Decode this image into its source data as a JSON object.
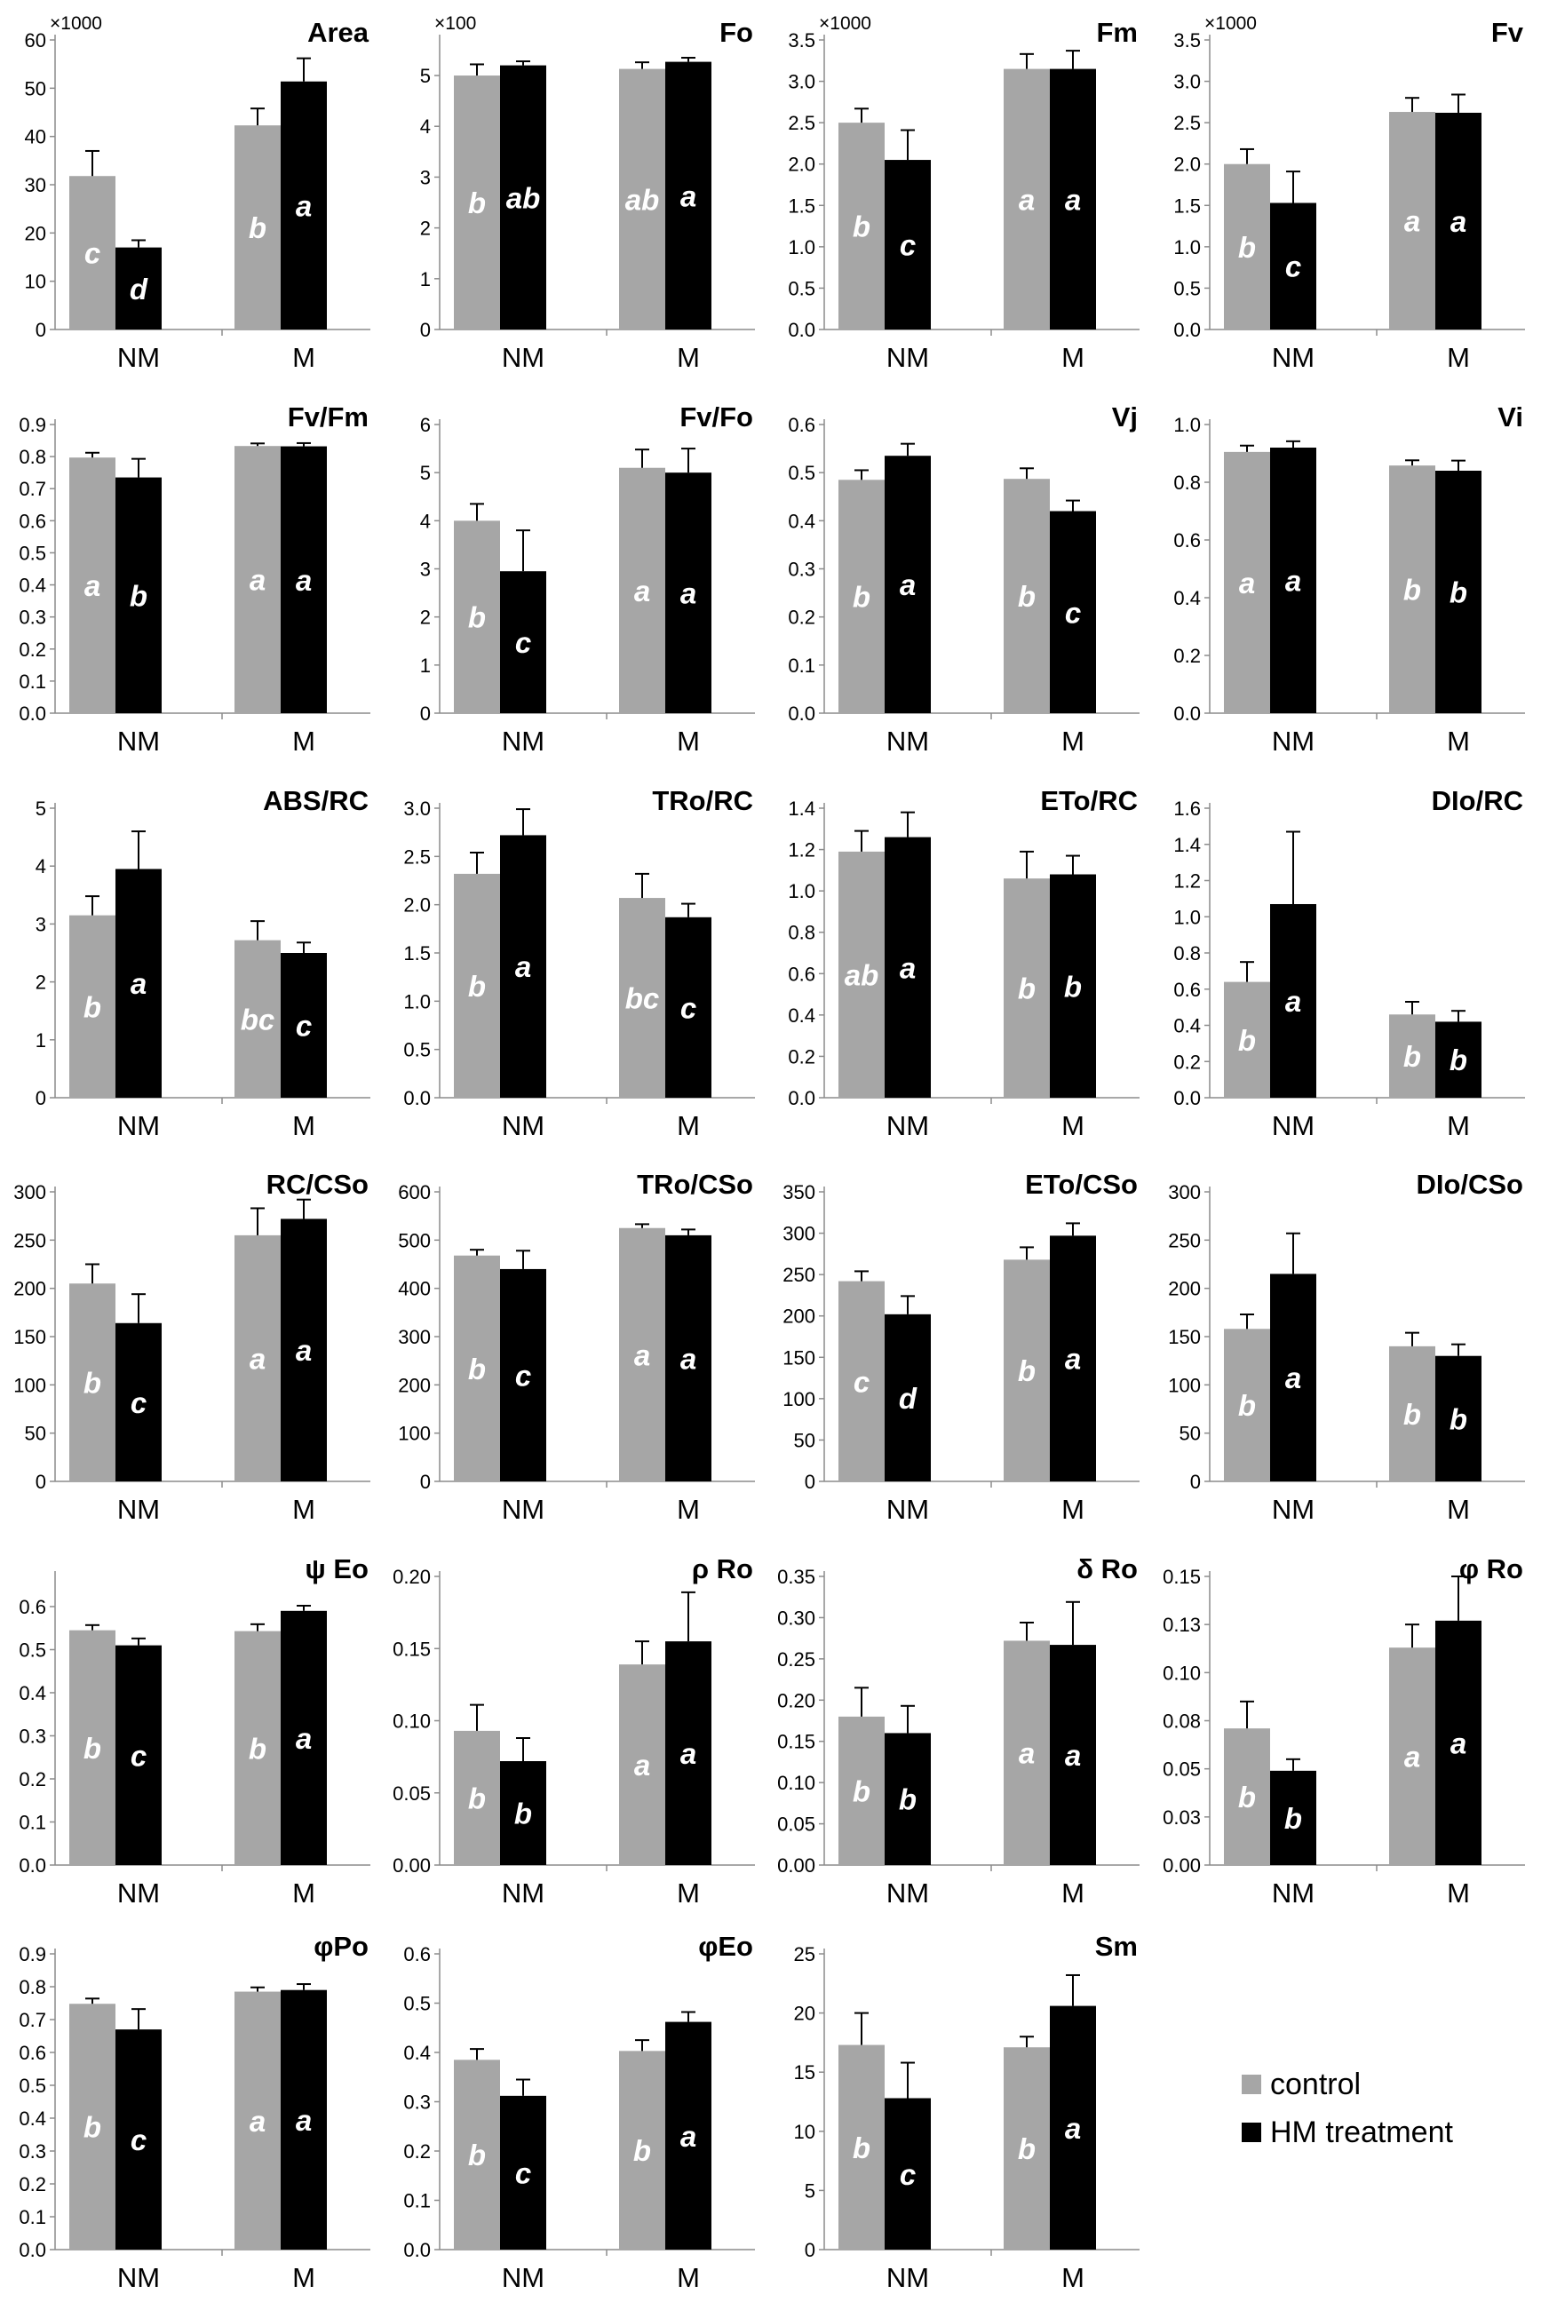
{
  "categories": [
    "NM",
    "M"
  ],
  "colors": {
    "control": "#a6a6a6",
    "treatment": "#000000"
  },
  "legend": {
    "control": "control",
    "treatment": "HM treatment"
  },
  "chart_data": [
    {
      "type": "bar",
      "title": "Area",
      "multiplier": "×1000",
      "ticks": [
        "0",
        "10",
        "20",
        "30",
        "40",
        "50",
        "60"
      ],
      "ylim": [
        0,
        60
      ],
      "series": [
        {
          "name": "control",
          "values": [
            31.8,
            42.3
          ],
          "errors": [
            5.2,
            3.5
          ],
          "letters": [
            "c",
            "b"
          ]
        },
        {
          "name": "HM treatment",
          "values": [
            17.0,
            51.4
          ],
          "errors": [
            1.5,
            4.8
          ],
          "letters": [
            "d",
            "a"
          ]
        }
      ]
    },
    {
      "type": "bar",
      "title": "Fo",
      "multiplier": "×100",
      "ticks": [
        "0",
        "1",
        "2",
        "3",
        "4",
        "5"
      ],
      "ylim": [
        0,
        5.7
      ],
      "series": [
        {
          "name": "control",
          "values": [
            5.0,
            5.13
          ],
          "errors": [
            0.22,
            0.13
          ],
          "letters": [
            "b",
            "ab"
          ]
        },
        {
          "name": "HM treatment",
          "values": [
            5.2,
            5.27
          ],
          "errors": [
            0.08,
            0.08
          ],
          "letters": [
            "ab",
            "a"
          ]
        }
      ]
    },
    {
      "type": "bar",
      "title": "Fm",
      "multiplier": "×1000",
      "ticks": [
        "0.0",
        "0.5",
        "1.0",
        "1.5",
        "2.0",
        "2.5",
        "3.0",
        "3.5"
      ],
      "ylim": [
        0,
        3.5
      ],
      "series": [
        {
          "name": "control",
          "values": [
            2.5,
            3.15
          ],
          "errors": [
            0.17,
            0.18
          ],
          "letters": [
            "b",
            "a"
          ]
        },
        {
          "name": "HM treatment",
          "values": [
            2.05,
            3.15
          ],
          "errors": [
            0.36,
            0.22
          ],
          "letters": [
            "c",
            "a"
          ]
        }
      ]
    },
    {
      "type": "bar",
      "title": "Fv",
      "multiplier": "×1000",
      "ticks": [
        "0.0",
        "0.5",
        "1.0",
        "1.5",
        "2.0",
        "2.5",
        "3.0",
        "3.5"
      ],
      "ylim": [
        0,
        3.5
      ],
      "series": [
        {
          "name": "control",
          "values": [
            2.0,
            2.63
          ],
          "errors": [
            0.18,
            0.17
          ],
          "letters": [
            "b",
            "a"
          ]
        },
        {
          "name": "HM treatment",
          "values": [
            1.53,
            2.62
          ],
          "errors": [
            0.38,
            0.22
          ],
          "letters": [
            "c",
            "a"
          ]
        }
      ]
    },
    {
      "type": "bar",
      "title": "Fv/Fm",
      "multiplier": "",
      "ticks": [
        "0.0",
        "0.1",
        "0.2",
        "0.3",
        "0.4",
        "0.5",
        "0.6",
        "0.7",
        "0.8",
        "0.9"
      ],
      "ylim": [
        0,
        0.9
      ],
      "series": [
        {
          "name": "control",
          "values": [
            0.797,
            0.833
          ],
          "errors": [
            0.015,
            0.008
          ],
          "letters": [
            "a",
            "a"
          ]
        },
        {
          "name": "HM treatment",
          "values": [
            0.735,
            0.832
          ],
          "errors": [
            0.058,
            0.01
          ],
          "letters": [
            "b",
            "a"
          ]
        }
      ]
    },
    {
      "type": "bar",
      "title": "Fv/Fo",
      "multiplier": "",
      "ticks": [
        "0",
        "1",
        "2",
        "3",
        "4",
        "5",
        "6"
      ],
      "ylim": [
        0,
        6
      ],
      "series": [
        {
          "name": "control",
          "values": [
            4.0,
            5.1
          ],
          "errors": [
            0.35,
            0.38
          ],
          "letters": [
            "b",
            "a"
          ]
        },
        {
          "name": "HM treatment",
          "values": [
            2.95,
            5.0
          ],
          "errors": [
            0.85,
            0.5
          ],
          "letters": [
            "c",
            "a"
          ]
        }
      ]
    },
    {
      "type": "bar",
      "title": "Vj",
      "multiplier": "",
      "ticks": [
        "0.0",
        "0.1",
        "0.2",
        "0.3",
        "0.4",
        "0.5",
        "0.6"
      ],
      "ylim": [
        0,
        0.6
      ],
      "series": [
        {
          "name": "control",
          "values": [
            0.485,
            0.487
          ],
          "errors": [
            0.02,
            0.022
          ],
          "letters": [
            "b",
            "b"
          ]
        },
        {
          "name": "HM treatment",
          "values": [
            0.535,
            0.42
          ],
          "errors": [
            0.025,
            0.022
          ],
          "letters": [
            "a",
            "c"
          ]
        }
      ]
    },
    {
      "type": "bar",
      "title": "Vi",
      "multiplier": "",
      "ticks": [
        "0.0",
        "0.2",
        "0.4",
        "0.6",
        "0.8",
        "1.0"
      ],
      "ylim": [
        0,
        1.0
      ],
      "series": [
        {
          "name": "control",
          "values": [
            0.905,
            0.858
          ],
          "errors": [
            0.022,
            0.018
          ],
          "letters": [
            "a",
            "b"
          ]
        },
        {
          "name": "HM treatment",
          "values": [
            0.92,
            0.84
          ],
          "errors": [
            0.022,
            0.035
          ],
          "letters": [
            "a",
            "b"
          ]
        }
      ]
    },
    {
      "type": "bar",
      "title": "ABS/RC",
      "multiplier": "",
      "ticks": [
        "0",
        "1",
        "2",
        "3",
        "4",
        "5"
      ],
      "ylim": [
        0,
        5
      ],
      "series": [
        {
          "name": "control",
          "values": [
            3.15,
            2.72
          ],
          "errors": [
            0.33,
            0.33
          ],
          "letters": [
            "b",
            "bc"
          ]
        },
        {
          "name": "HM treatment",
          "values": [
            3.95,
            2.5
          ],
          "errors": [
            0.65,
            0.18
          ],
          "letters": [
            "a",
            "c"
          ]
        }
      ]
    },
    {
      "type": "bar",
      "title": "TRo/RC",
      "multiplier": "",
      "ticks": [
        "0.0",
        "0.5",
        "1.0",
        "1.5",
        "2.0",
        "2.5",
        "3.0"
      ],
      "ylim": [
        0,
        3.0
      ],
      "series": [
        {
          "name": "control",
          "values": [
            2.32,
            2.07
          ],
          "errors": [
            0.22,
            0.25
          ],
          "letters": [
            "b",
            "bc"
          ]
        },
        {
          "name": "HM treatment",
          "values": [
            2.72,
            1.87
          ],
          "errors": [
            0.27,
            0.14
          ],
          "letters": [
            "a",
            "c"
          ]
        }
      ]
    },
    {
      "type": "bar",
      "title": "ETo/RC",
      "multiplier": "",
      "ticks": [
        "0.0",
        "0.2",
        "0.4",
        "0.6",
        "0.8",
        "1.0",
        "1.2",
        "1.4"
      ],
      "ylim": [
        0,
        1.4
      ],
      "series": [
        {
          "name": "control",
          "values": [
            1.19,
            1.06
          ],
          "errors": [
            0.1,
            0.13
          ],
          "letters": [
            "ab",
            "b"
          ]
        },
        {
          "name": "HM treatment",
          "values": [
            1.26,
            1.08
          ],
          "errors": [
            0.12,
            0.09
          ],
          "letters": [
            "a",
            "b"
          ]
        }
      ]
    },
    {
      "type": "bar",
      "title": "DIo/RC",
      "multiplier": "",
      "ticks": [
        "0.0",
        "0.2",
        "0.4",
        "0.6",
        "0.8",
        "1.0",
        "1.2",
        "1.4",
        "1.6"
      ],
      "ylim": [
        0,
        1.6
      ],
      "series": [
        {
          "name": "control",
          "values": [
            0.64,
            0.46
          ],
          "errors": [
            0.11,
            0.07
          ],
          "letters": [
            "b",
            "b"
          ]
        },
        {
          "name": "HM treatment",
          "values": [
            1.07,
            0.42
          ],
          "errors": [
            0.4,
            0.06
          ],
          "letters": [
            "a",
            "b"
          ]
        }
      ]
    },
    {
      "type": "bar",
      "title": "RC/CSo",
      "multiplier": "",
      "ticks": [
        "0",
        "50",
        "100",
        "150",
        "200",
        "250",
        "300"
      ],
      "ylim": [
        0,
        300
      ],
      "series": [
        {
          "name": "control",
          "values": [
            205,
            255
          ],
          "errors": [
            20,
            28
          ],
          "letters": [
            "b",
            "a"
          ]
        },
        {
          "name": "HM treatment",
          "values": [
            164,
            272
          ],
          "errors": [
            30,
            20
          ],
          "letters": [
            "c",
            "a"
          ]
        }
      ]
    },
    {
      "type": "bar",
      "title": "TRo/CSo",
      "multiplier": "",
      "ticks": [
        "0",
        "100",
        "200",
        "300",
        "400",
        "500",
        "600"
      ],
      "ylim": [
        0,
        600
      ],
      "series": [
        {
          "name": "control",
          "values": [
            468,
            525
          ],
          "errors": [
            12,
            8
          ],
          "letters": [
            "b",
            "a"
          ]
        },
        {
          "name": "HM treatment",
          "values": [
            440,
            510
          ],
          "errors": [
            38,
            12
          ],
          "letters": [
            "c",
            "a"
          ]
        }
      ]
    },
    {
      "type": "bar",
      "title": "ETo/CSo",
      "multiplier": "",
      "ticks": [
        "0",
        "50",
        "100",
        "150",
        "200",
        "250",
        "300",
        "350"
      ],
      "ylim": [
        0,
        350
      ],
      "series": [
        {
          "name": "control",
          "values": [
            242,
            268
          ],
          "errors": [
            12,
            15
          ],
          "letters": [
            "c",
            "b"
          ]
        },
        {
          "name": "HM treatment",
          "values": [
            202,
            297
          ],
          "errors": [
            22,
            15
          ],
          "letters": [
            "d",
            "a"
          ]
        }
      ]
    },
    {
      "type": "bar",
      "title": "DIo/CSo",
      "multiplier": "",
      "ticks": [
        "0",
        "50",
        "100",
        "150",
        "200",
        "250",
        "300"
      ],
      "ylim": [
        0,
        300
      ],
      "series": [
        {
          "name": "control",
          "values": [
            158,
            140
          ],
          "errors": [
            15,
            14
          ],
          "letters": [
            "b",
            "b"
          ]
        },
        {
          "name": "HM treatment",
          "values": [
            215,
            130
          ],
          "errors": [
            42,
            12
          ],
          "letters": [
            "a",
            "b"
          ]
        }
      ]
    },
    {
      "type": "bar",
      "title": "ψ Eo",
      "multiplier": "",
      "ticks": [
        "0.0",
        "0.1",
        "0.2",
        "0.3",
        "0.4",
        "0.5",
        "0.6"
      ],
      "ylim": [
        0,
        0.67
      ],
      "series": [
        {
          "name": "control",
          "values": [
            0.545,
            0.543
          ],
          "errors": [
            0.012,
            0.016
          ],
          "letters": [
            "b",
            "b"
          ]
        },
        {
          "name": "HM treatment",
          "values": [
            0.51,
            0.59
          ],
          "errors": [
            0.016,
            0.012
          ],
          "letters": [
            "c",
            "a"
          ]
        }
      ]
    },
    {
      "type": "bar",
      "title": "ρ Ro",
      "multiplier": "",
      "ticks": [
        "0.00",
        "0.05",
        "0.10",
        "0.15",
        "0.20"
      ],
      "ylim": [
        0,
        0.2
      ],
      "series": [
        {
          "name": "control",
          "values": [
            0.093,
            0.139
          ],
          "errors": [
            0.018,
            0.016
          ],
          "letters": [
            "b",
            "a"
          ]
        },
        {
          "name": "HM treatment",
          "values": [
            0.072,
            0.155
          ],
          "errors": [
            0.016,
            0.034
          ],
          "letters": [
            "b",
            "a"
          ]
        }
      ]
    },
    {
      "type": "bar",
      "title": "δ Ro",
      "multiplier": "",
      "ticks": [
        "0.00",
        "0.05",
        "0.10",
        "0.15",
        "0.20",
        "0.25",
        "0.30",
        "0.35"
      ],
      "ylim": [
        0,
        0.35
      ],
      "series": [
        {
          "name": "control",
          "values": [
            0.18,
            0.272
          ],
          "errors": [
            0.035,
            0.022
          ],
          "letters": [
            "b",
            "a"
          ]
        },
        {
          "name": "HM treatment",
          "values": [
            0.16,
            0.267
          ],
          "errors": [
            0.033,
            0.052
          ],
          "letters": [
            "b",
            "a"
          ]
        }
      ]
    },
    {
      "type": "bar",
      "title": "φ Ro",
      "multiplier": "",
      "ticks": [
        "0.00",
        "0.03",
        "0.05",
        "0.08",
        "0.10",
        "0.13",
        "0.15"
      ],
      "ylim": [
        0,
        0.15
      ],
      "series": [
        {
          "name": "control",
          "values": [
            0.071,
            0.113
          ],
          "errors": [
            0.014,
            0.012
          ],
          "letters": [
            "b",
            "a"
          ]
        },
        {
          "name": "HM treatment",
          "values": [
            0.049,
            0.127
          ],
          "errors": [
            0.006,
            0.023
          ],
          "letters": [
            "b",
            "a"
          ]
        }
      ]
    },
    {
      "type": "bar",
      "title": "φPo",
      "multiplier": "",
      "ticks": [
        "0.0",
        "0.1",
        "0.2",
        "0.3",
        "0.4",
        "0.5",
        "0.6",
        "0.7",
        "0.8",
        "0.9"
      ],
      "ylim": [
        0,
        0.9
      ],
      "series": [
        {
          "name": "control",
          "values": [
            0.748,
            0.785
          ],
          "errors": [
            0.016,
            0.013
          ],
          "letters": [
            "b",
            "a"
          ]
        },
        {
          "name": "HM treatment",
          "values": [
            0.67,
            0.79
          ],
          "errors": [
            0.062,
            0.018
          ],
          "letters": [
            "c",
            "a"
          ]
        }
      ]
    },
    {
      "type": "bar",
      "title": "φEo",
      "multiplier": "",
      "ticks": [
        "0.0",
        "0.1",
        "0.2",
        "0.3",
        "0.4",
        "0.5",
        "0.6"
      ],
      "ylim": [
        0,
        0.6
      ],
      "series": [
        {
          "name": "control",
          "values": [
            0.385,
            0.403
          ],
          "errors": [
            0.022,
            0.022
          ],
          "letters": [
            "b",
            "b"
          ]
        },
        {
          "name": "HM treatment",
          "values": [
            0.312,
            0.462
          ],
          "errors": [
            0.033,
            0.02
          ],
          "letters": [
            "c",
            "a"
          ]
        }
      ]
    },
    {
      "type": "bar",
      "title": "Sm",
      "multiplier": "",
      "ticks": [
        "0",
        "5",
        "10",
        "15",
        "20",
        "25"
      ],
      "ylim": [
        0,
        25
      ],
      "series": [
        {
          "name": "control",
          "values": [
            17.3,
            17.1
          ],
          "errors": [
            2.7,
            0.9
          ],
          "letters": [
            "b",
            "b"
          ]
        },
        {
          "name": "HM treatment",
          "values": [
            12.8,
            20.6
          ],
          "errors": [
            3.0,
            2.6
          ],
          "letters": [
            "c",
            "a"
          ]
        }
      ]
    }
  ]
}
